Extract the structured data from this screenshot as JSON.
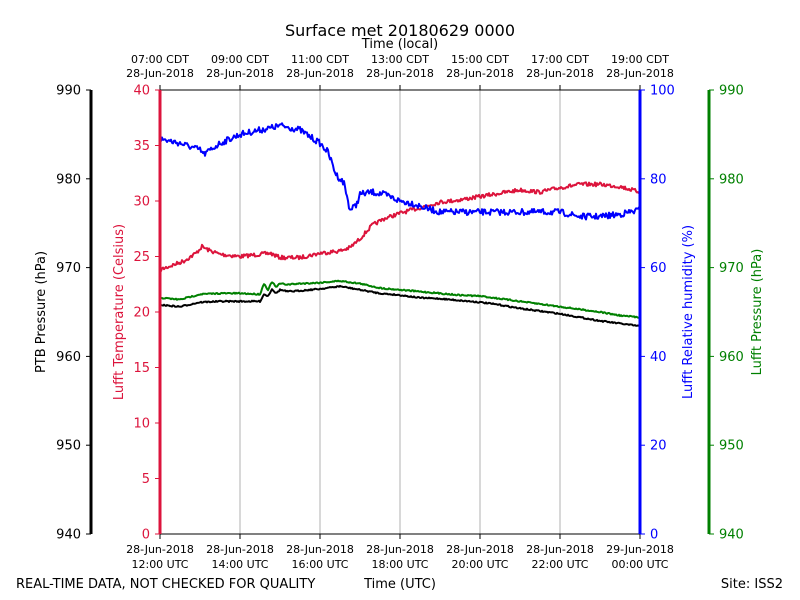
{
  "chart_data": {
    "type": "line",
    "title": "Surface met 20180629 0000",
    "top_axis_title": "Time (local)",
    "bottom_axis_title": "Time (UTC)",
    "footer_left": "REAL-TIME DATA, NOT CHECKED FOR QUALITY",
    "footer_right": "Site: ISS2",
    "x_range_hours_utc": [
      12,
      24
    ],
    "bottom_ticks": [
      {
        "hour": 12,
        "line1": "28-Jun-2018",
        "line2": "12:00 UTC"
      },
      {
        "hour": 14,
        "line1": "28-Jun-2018",
        "line2": "14:00 UTC"
      },
      {
        "hour": 16,
        "line1": "28-Jun-2018",
        "line2": "16:00 UTC"
      },
      {
        "hour": 18,
        "line1": "28-Jun-2018",
        "line2": "18:00 UTC"
      },
      {
        "hour": 20,
        "line1": "28-Jun-2018",
        "line2": "20:00 UTC"
      },
      {
        "hour": 22,
        "line1": "28-Jun-2018",
        "line2": "22:00 UTC"
      },
      {
        "hour": 24,
        "line1": "29-Jun-2018",
        "line2": "00:00 UTC"
      }
    ],
    "top_ticks": [
      {
        "hour": 12,
        "line1": "07:00 CDT",
        "line2": "28-Jun-2018"
      },
      {
        "hour": 14,
        "line1": "09:00 CDT",
        "line2": "28-Jun-2018"
      },
      {
        "hour": 16,
        "line1": "11:00 CDT",
        "line2": "28-Jun-2018"
      },
      {
        "hour": 18,
        "line1": "13:00 CDT",
        "line2": "28-Jun-2018"
      },
      {
        "hour": 20,
        "line1": "15:00 CDT",
        "line2": "28-Jun-2018"
      },
      {
        "hour": 22,
        "line1": "17:00 CDT",
        "line2": "28-Jun-2018"
      },
      {
        "hour": 24,
        "line1": "19:00 CDT",
        "line2": "28-Jun-2018"
      }
    ],
    "axes": [
      {
        "id": "ptb",
        "label": "PTB Pressure (hPa)",
        "color": "#000000",
        "ylim": [
          940,
          990
        ],
        "ticks": [
          940,
          950,
          960,
          970,
          980,
          990
        ]
      },
      {
        "id": "temp",
        "label": "Lufft Temperature (Celsius)",
        "color": "#dc143c",
        "ylim": [
          0,
          40
        ],
        "ticks": [
          0,
          5,
          10,
          15,
          20,
          25,
          30,
          35,
          40
        ]
      },
      {
        "id": "rh",
        "label": "Lufft Relative humidity (%)",
        "color": "#0000ff",
        "ylim": [
          0,
          100
        ],
        "ticks": [
          0,
          20,
          40,
          60,
          80,
          100
        ]
      },
      {
        "id": "lp",
        "label": "Lufft Pressure (hPa)",
        "color": "#008000",
        "ylim": [
          940,
          990
        ],
        "ticks": [
          940,
          950,
          960,
          970,
          980,
          990
        ]
      }
    ],
    "series": [
      {
        "name": "Lufft Temperature",
        "axis": "temp",
        "color": "#dc143c",
        "x": [
          12.0,
          12.3,
          12.6,
          12.9,
          13.05,
          13.2,
          13.5,
          14.0,
          14.5,
          14.75,
          15.0,
          15.5,
          16.0,
          16.5,
          16.75,
          17.0,
          17.3,
          17.6,
          18.0,
          18.5,
          19.0,
          19.5,
          20.0,
          20.5,
          21.0,
          21.5,
          22.0,
          22.5,
          23.0,
          23.5,
          24.0
        ],
        "y": [
          23.8,
          24.2,
          24.6,
          25.3,
          25.9,
          25.6,
          25.2,
          25.0,
          25.2,
          25.3,
          24.9,
          24.9,
          25.3,
          25.5,
          25.8,
          26.6,
          27.8,
          28.4,
          28.9,
          29.4,
          29.9,
          30.1,
          30.4,
          30.7,
          31.0,
          30.8,
          31.2,
          31.5,
          31.5,
          31.3,
          30.8
        ]
      },
      {
        "name": "Lufft Relative humidity",
        "axis": "rh",
        "color": "#0000ff",
        "x": [
          12.0,
          12.5,
          13.0,
          13.1,
          13.5,
          14.0,
          14.5,
          14.8,
          15.0,
          15.5,
          16.0,
          16.2,
          16.4,
          16.6,
          16.75,
          16.9,
          17.0,
          17.3,
          17.6,
          18.0,
          18.3,
          18.6,
          19.0,
          19.5,
          20.0,
          20.5,
          21.0,
          21.5,
          22.0,
          22.5,
          23.0,
          23.5,
          24.0
        ],
        "y": [
          89,
          88,
          86.5,
          85.5,
          88,
          90,
          91,
          91.5,
          92,
          91,
          88,
          86,
          81,
          79,
          73,
          74,
          76.5,
          77,
          76.5,
          75,
          74.5,
          73.5,
          72.5,
          72.5,
          72.5,
          72.5,
          72.5,
          72.5,
          72.5,
          71.5,
          71.5,
          72,
          73
        ]
      },
      {
        "name": "PTB Pressure",
        "axis": "ptb",
        "color": "#000000",
        "x": [
          12.0,
          12.5,
          13.0,
          13.5,
          14.0,
          14.5,
          14.6,
          14.7,
          14.8,
          14.9,
          15.0,
          15.2,
          15.5,
          16.0,
          16.5,
          17.0,
          17.5,
          18.0,
          18.5,
          19.0,
          19.5,
          20.0,
          20.5,
          21.0,
          21.5,
          22.0,
          22.5,
          23.0,
          23.5,
          24.0
        ],
        "y": [
          965.8,
          965.6,
          966.1,
          966.2,
          966.2,
          966.2,
          967.0,
          966.8,
          967.6,
          967.1,
          967.5,
          967.3,
          967.4,
          967.6,
          967.9,
          967.5,
          967.1,
          966.9,
          966.6,
          966.5,
          966.3,
          966.1,
          965.8,
          965.4,
          965.1,
          964.8,
          964.4,
          964.0,
          963.7,
          963.4
        ]
      },
      {
        "name": "Lufft Pressure",
        "axis": "lp",
        "color": "#008000",
        "x": [
          12.0,
          12.5,
          13.0,
          13.5,
          14.0,
          14.5,
          14.6,
          14.7,
          14.8,
          14.9,
          15.0,
          15.2,
          15.5,
          16.0,
          16.5,
          17.0,
          17.5,
          18.0,
          18.5,
          19.0,
          19.5,
          20.0,
          20.5,
          21.0,
          21.5,
          22.0,
          22.5,
          23.0,
          23.5,
          24.0
        ],
        "y": [
          966.6,
          966.4,
          967.0,
          967.1,
          967.1,
          967.0,
          968.2,
          967.5,
          968.4,
          967.8,
          968.2,
          968.1,
          968.2,
          968.3,
          968.5,
          968.2,
          967.7,
          967.5,
          967.3,
          967.1,
          966.9,
          966.8,
          966.5,
          966.2,
          965.9,
          965.6,
          965.3,
          965.0,
          964.6,
          964.4
        ]
      }
    ]
  }
}
